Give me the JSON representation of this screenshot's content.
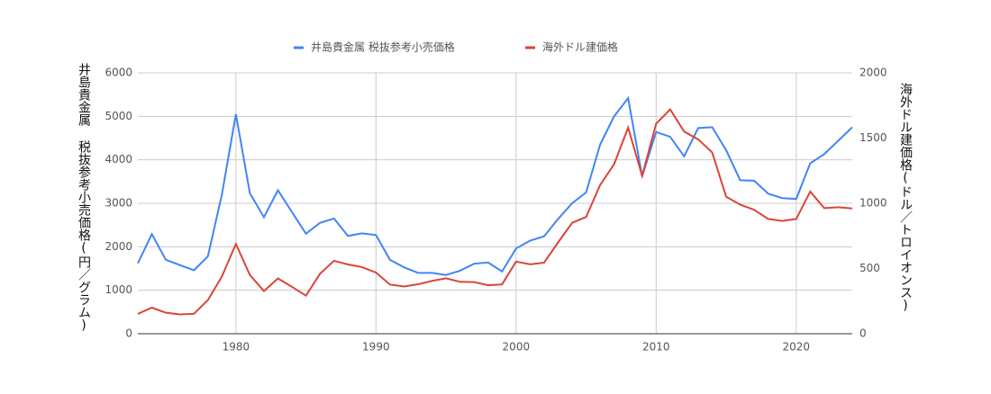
{
  "chart_data": {
    "type": "line",
    "y_label": "井島貴金属 税抜参考小売価格(円／グラム)",
    "y2_label": "海外ドル建価格(ドル／トロイオンス)",
    "x": [
      1973,
      1974,
      1975,
      1976,
      1977,
      1978,
      1979,
      1980,
      1981,
      1982,
      1983,
      1984,
      1985,
      1986,
      1987,
      1988,
      1989,
      1990,
      1991,
      1992,
      1993,
      1994,
      1995,
      1996,
      1997,
      1998,
      1999,
      2000,
      2001,
      2002,
      2003,
      2004,
      2005,
      2006,
      2007,
      2008,
      2009,
      2010,
      2011,
      2012,
      2013,
      2014,
      2015,
      2016,
      2017,
      2018,
      2019,
      2020,
      2021,
      2022,
      2023,
      2024
    ],
    "series": [
      {
        "name": "井島貴金属 税抜参考小売価格",
        "color": "#4285f4",
        "values": [
          1620,
          2290,
          1700,
          1580,
          1460,
          1780,
          3200,
          5050,
          3230,
          2680,
          3300,
          2800,
          2300,
          2550,
          2650,
          2250,
          2310,
          2270,
          1700,
          1530,
          1400,
          1400,
          1350,
          1450,
          1610,
          1640,
          1430,
          1960,
          2140,
          2240,
          2640,
          3000,
          3250,
          4350,
          5000,
          5420,
          3620,
          4640,
          4530,
          4080,
          4730,
          4750,
          4220,
          3530,
          3520,
          3220,
          3120,
          3100,
          3920,
          4130,
          4440,
          4750
        ]
      },
      {
        "name": "海外ドル建価格",
        "color": "#db4437",
        "axis": "y2",
        "values": [
          152,
          200,
          161,
          148,
          153,
          258,
          439,
          688,
          450,
          327,
          424,
          360,
          292,
          459,
          559,
          531,
          511,
          469,
          377,
          362,
          379,
          405,
          425,
          398,
          396,
          372,
          378,
          553,
          532,
          545,
          700,
          850,
          895,
          1140,
          1300,
          1580,
          1210,
          1610,
          1720,
          1550,
          1490,
          1390,
          1050,
          990,
          950,
          880,
          865,
          880,
          1090,
          963,
          970,
          960
        ]
      }
    ],
    "xlim": [
      1973,
      2024
    ],
    "xticks": [
      1980,
      1990,
      2000,
      2010,
      2020
    ],
    "ylim": [
      0,
      6000
    ],
    "yticks": [
      0,
      1000,
      2000,
      3000,
      4000,
      5000,
      6000
    ],
    "y2lim": [
      0,
      2000
    ],
    "y2ticks": [
      0,
      500,
      1000,
      1500,
      2000
    ],
    "grid": true
  }
}
